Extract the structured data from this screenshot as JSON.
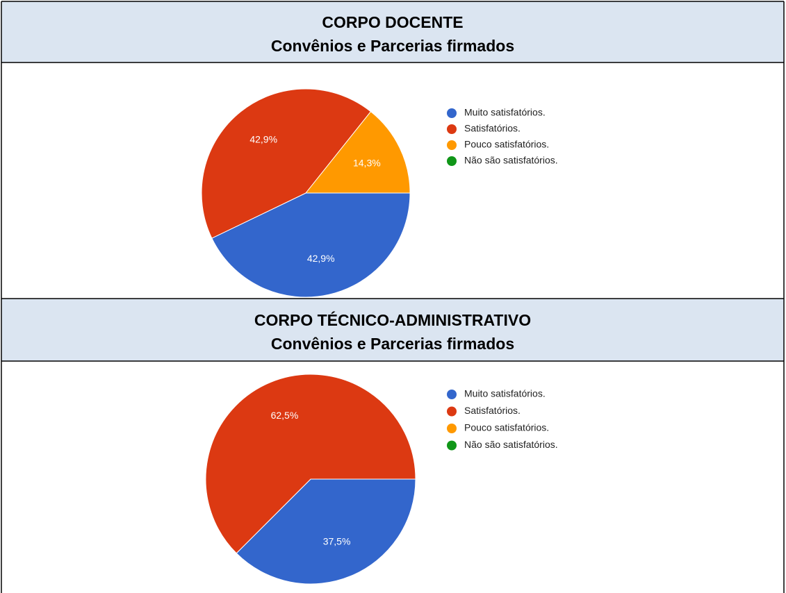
{
  "chart_data": [
    {
      "type": "pie",
      "title": "CORPO DOCENTE",
      "subtitle": "Convênios e Parcerias firmados",
      "categories": [
        "Muito satisfatórios.",
        "Satisfatórios.",
        "Pouco satisfatórios.",
        "Não são satisfatórios."
      ],
      "values": [
        42.9,
        42.9,
        14.3,
        0
      ],
      "value_labels": [
        "42,9%",
        "42,9%",
        "14,3%",
        null
      ],
      "colors": [
        "#3366cc",
        "#dc3912",
        "#ff9900",
        "#109618"
      ],
      "legend": "right"
    },
    {
      "type": "pie",
      "title": "CORPO TÉCNICO-ADMINISTRATIVO",
      "subtitle": "Convênios e Parcerias firmados",
      "categories": [
        "Muito satisfatórios.",
        "Satisfatórios.",
        "Pouco satisfatórios.",
        "Não são satisfatórios."
      ],
      "values": [
        37.5,
        62.5,
        0,
        0
      ],
      "value_labels": [
        "37,5%",
        "62,5%",
        null,
        null
      ],
      "colors": [
        "#3366cc",
        "#dc3912",
        "#ff9900",
        "#109618"
      ],
      "legend": "right"
    }
  ]
}
